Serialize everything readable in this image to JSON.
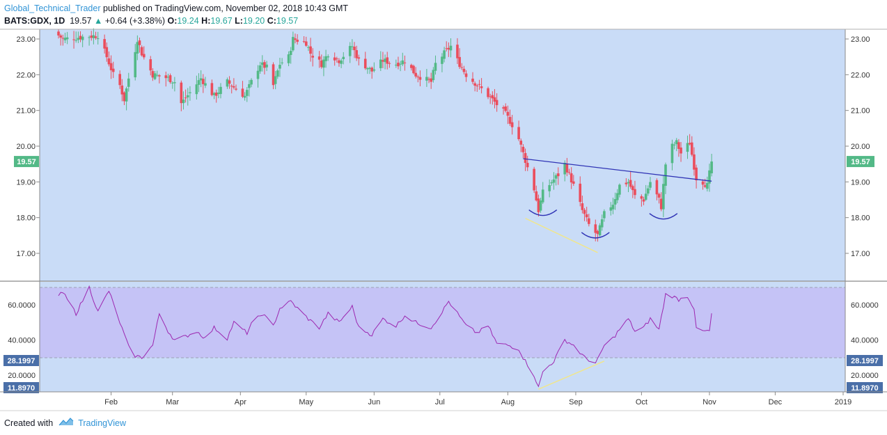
{
  "header": {
    "author": "Global_Technical_Trader",
    "published_text": "published on TradingView.com, November 02, 2018 10:43 GMT"
  },
  "ticker": {
    "symbol": "BATS:GDX, 1D",
    "price": "19.57",
    "change": "+0.64 (+3.38%)",
    "o_label": "O:",
    "o_value": "19.24",
    "h_label": "H:",
    "h_value": "19.67",
    "l_label": "L:",
    "l_value": "19.20",
    "c_label": "C:",
    "c_value": "19.57"
  },
  "footer": {
    "created_with": "Created with",
    "brand": "TradingView"
  },
  "colors": {
    "bg": "#c9dcf7",
    "up": "#53b987",
    "down": "#eb4d5c",
    "rsi_line": "#9c27b0",
    "rsi_band": "#c5c3f6",
    "trendline": "#2f33b5",
    "divergence": "#f0e68c",
    "price_badge": "#53b987",
    "level_badge": "#4a6fa8"
  },
  "chart_data": [
    {
      "type": "candlestick",
      "title": "BATS:GDX, 1D",
      "ylim": [
        16.2,
        23.3
      ],
      "y_ticks": [
        "23.00",
        "22.00",
        "21.00",
        "20.00",
        "19.00",
        "18.00",
        "17.00"
      ],
      "last_price_label": "19.57",
      "x_ticks": [
        "Feb",
        "Mar",
        "Apr",
        "May",
        "Jun",
        "Jul",
        "Aug",
        "Sep",
        "Oct",
        "Nov",
        "Dec",
        "2019"
      ],
      "annotations": [
        {
          "kind": "trendline",
          "from": [
            "2018-08-08",
            19.65
          ],
          "to": [
            "2018-11-02",
            19.02
          ]
        },
        {
          "kind": "arc",
          "center": [
            "2018-08-17",
            18.08
          ],
          "label": "left shoulder"
        },
        {
          "kind": "arc",
          "center": [
            "2018-09-10",
            17.45
          ],
          "label": "head"
        },
        {
          "kind": "arc",
          "center": [
            "2018-10-11",
            17.98
          ],
          "label": "right shoulder"
        },
        {
          "kind": "divergence-line",
          "from": [
            "2018-08-09",
            17.98
          ],
          "to": [
            "2018-09-11",
            17.02
          ]
        }
      ],
      "series_anchor_closes": [
        [
          "2018-01-08",
          23.1
        ],
        [
          "2018-01-10",
          23.0
        ],
        [
          "2018-01-26",
          23.1
        ],
        [
          "2018-01-30",
          22.5
        ],
        [
          "2018-02-02",
          22.0
        ],
        [
          "2018-02-05",
          21.7
        ],
        [
          "2018-02-07",
          21.3
        ],
        [
          "2018-02-09",
          21.9
        ],
        [
          "2018-02-12",
          22.7
        ],
        [
          "2018-02-13",
          23.0
        ],
        [
          "2018-02-15",
          22.6
        ],
        [
          "2018-02-20",
          22.0
        ],
        [
          "2018-02-27",
          21.9
        ],
        [
          "2018-03-02",
          21.8
        ],
        [
          "2018-03-05",
          21.2
        ],
        [
          "2018-03-09",
          21.5
        ],
        [
          "2018-03-14",
          21.9
        ],
        [
          "2018-03-20",
          21.4
        ],
        [
          "2018-03-26",
          21.8
        ],
        [
          "2018-04-03",
          21.4
        ],
        [
          "2018-04-06",
          21.8
        ],
        [
          "2018-04-10",
          22.3
        ],
        [
          "2018-04-13",
          22.2
        ],
        [
          "2018-04-16",
          21.7
        ],
        [
          "2018-04-19",
          22.3
        ],
        [
          "2018-04-23",
          22.5
        ],
        [
          "2018-04-25",
          23.0
        ],
        [
          "2018-05-01",
          22.9
        ],
        [
          "2018-05-03",
          22.6
        ],
        [
          "2018-05-08",
          22.3
        ],
        [
          "2018-05-11",
          22.6
        ],
        [
          "2018-05-16",
          22.4
        ],
        [
          "2018-05-22",
          22.8
        ],
        [
          "2018-05-25",
          22.4
        ],
        [
          "2018-05-31",
          22.1
        ],
        [
          "2018-06-05",
          22.4
        ],
        [
          "2018-06-11",
          22.3
        ],
        [
          "2018-06-15",
          22.4
        ],
        [
          "2018-06-20",
          22.0
        ],
        [
          "2018-06-27",
          21.8
        ],
        [
          "2018-06-29",
          22.3
        ],
        [
          "2018-07-03",
          22.6
        ],
        [
          "2018-07-06",
          22.8
        ],
        [
          "2018-07-09",
          22.4
        ],
        [
          "2018-07-13",
          22.0
        ],
        [
          "2018-07-20",
          21.6
        ],
        [
          "2018-07-25",
          21.3
        ],
        [
          "2018-07-31",
          20.9
        ],
        [
          "2018-08-03",
          20.6
        ],
        [
          "2018-08-06",
          20.2
        ],
        [
          "2018-08-08",
          19.8
        ],
        [
          "2018-08-13",
          18.8
        ],
        [
          "2018-08-15",
          18.2
        ],
        [
          "2018-08-17",
          18.7
        ],
        [
          "2018-08-21",
          19.0
        ],
        [
          "2018-08-24",
          19.2
        ],
        [
          "2018-08-27",
          19.5
        ],
        [
          "2018-08-31",
          18.9
        ],
        [
          "2018-09-04",
          18.2
        ],
        [
          "2018-09-07",
          17.8
        ],
        [
          "2018-09-11",
          17.5
        ],
        [
          "2018-09-14",
          18.1
        ],
        [
          "2018-09-18",
          18.4
        ],
        [
          "2018-09-21",
          18.9
        ],
        [
          "2018-09-25",
          19.0
        ],
        [
          "2018-09-28",
          18.6
        ],
        [
          "2018-10-02",
          18.5
        ],
        [
          "2018-10-05",
          19.0
        ],
        [
          "2018-10-09",
          18.5
        ],
        [
          "2018-10-10",
          18.3
        ],
        [
          "2018-10-12",
          19.5
        ],
        [
          "2018-10-15",
          20.0
        ],
        [
          "2018-10-17",
          20.1
        ],
        [
          "2018-10-19",
          19.8
        ],
        [
          "2018-10-23",
          20.1
        ],
        [
          "2018-10-26",
          19.1
        ],
        [
          "2018-10-29",
          19.0
        ],
        [
          "2018-10-31",
          18.9
        ],
        [
          "2018-11-02",
          19.57
        ]
      ]
    },
    {
      "type": "line",
      "title": "RSI",
      "ylim": [
        8,
        74
      ],
      "y_ticks": [
        "60.0000",
        "40.0000",
        "20.0000"
      ],
      "level_labels": [
        "28.1997",
        "11.8970"
      ],
      "series": [
        {
          "points": [
            [
              "2018-01-08",
              65
            ],
            [
              "2018-01-10",
              67
            ],
            [
              "2018-01-16",
              55
            ],
            [
              "2018-01-22",
              70
            ],
            [
              "2018-01-26",
              56
            ],
            [
              "2018-01-31",
              68
            ],
            [
              "2018-02-05",
              50
            ],
            [
              "2018-02-09",
              36
            ],
            [
              "2018-02-12",
              31
            ],
            [
              "2018-02-15",
              30
            ],
            [
              "2018-02-20",
              37
            ],
            [
              "2018-02-23",
              55
            ],
            [
              "2018-02-27",
              45
            ],
            [
              "2018-03-02",
              40
            ],
            [
              "2018-03-07",
              42
            ],
            [
              "2018-03-12",
              45
            ],
            [
              "2018-03-16",
              41
            ],
            [
              "2018-03-20",
              47
            ],
            [
              "2018-03-26",
              41
            ],
            [
              "2018-03-29",
              50
            ],
            [
              "2018-04-04",
              44
            ],
            [
              "2018-04-06",
              49
            ],
            [
              "2018-04-11",
              55
            ],
            [
              "2018-04-16",
              48
            ],
            [
              "2018-04-19",
              58
            ],
            [
              "2018-04-24",
              62
            ],
            [
              "2018-04-27",
              58
            ],
            [
              "2018-05-02",
              52
            ],
            [
              "2018-05-07",
              47
            ],
            [
              "2018-05-11",
              55
            ],
            [
              "2018-05-16",
              50
            ],
            [
              "2018-05-22",
              59
            ],
            [
              "2018-05-25",
              47
            ],
            [
              "2018-05-31",
              43
            ],
            [
              "2018-06-05",
              52
            ],
            [
              "2018-06-11",
              48
            ],
            [
              "2018-06-15",
              54
            ],
            [
              "2018-06-20",
              50
            ],
            [
              "2018-06-27",
              47
            ],
            [
              "2018-07-02",
              56
            ],
            [
              "2018-07-05",
              62
            ],
            [
              "2018-07-09",
              55
            ],
            [
              "2018-07-13",
              48
            ],
            [
              "2018-07-18",
              44
            ],
            [
              "2018-07-23",
              48
            ],
            [
              "2018-07-27",
              38
            ],
            [
              "2018-08-01",
              37
            ],
            [
              "2018-08-06",
              35
            ],
            [
              "2018-08-08",
              30
            ],
            [
              "2018-08-13",
              20
            ],
            [
              "2018-08-15",
              13
            ],
            [
              "2018-08-17",
              22
            ],
            [
              "2018-08-22",
              28
            ],
            [
              "2018-08-27",
              40
            ],
            [
              "2018-08-31",
              37
            ],
            [
              "2018-09-05",
              30
            ],
            [
              "2018-09-10",
              27
            ],
            [
              "2018-09-12",
              31
            ],
            [
              "2018-09-14",
              37
            ],
            [
              "2018-09-18",
              41
            ],
            [
              "2018-09-21",
              46
            ],
            [
              "2018-09-25",
              52
            ],
            [
              "2018-09-28",
              45
            ],
            [
              "2018-10-02",
              47
            ],
            [
              "2018-10-05",
              52
            ],
            [
              "2018-10-09",
              46
            ],
            [
              "2018-10-12",
              66
            ],
            [
              "2018-10-15",
              65
            ],
            [
              "2018-10-18",
              63
            ],
            [
              "2018-10-22",
              65
            ],
            [
              "2018-10-25",
              58
            ],
            [
              "2018-10-26",
              46
            ],
            [
              "2018-10-29",
              45
            ],
            [
              "2018-11-01",
              45
            ],
            [
              "2018-11-02",
              55
            ]
          ]
        }
      ],
      "annotations": [
        {
          "kind": "divergence-line",
          "from": [
            "2018-08-15",
            12
          ],
          "to": [
            "2018-09-14",
            28
          ]
        }
      ]
    }
  ]
}
